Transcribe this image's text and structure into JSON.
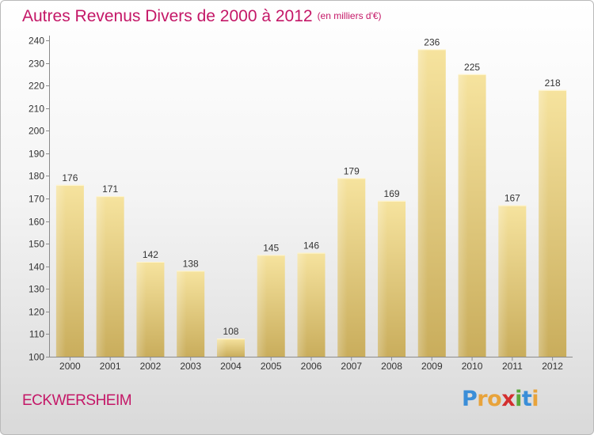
{
  "title": "Autres Revenus Divers de 2000 à 2012",
  "subtitle": "(en milliers d'€)",
  "location": "ECKWERSHEIM",
  "logo": {
    "letters": [
      "P",
      "r",
      "o",
      "x",
      "i",
      "t",
      "i"
    ],
    "colors": [
      "#3a8ed8",
      "#e8a33b",
      "#e8a33b",
      "#d32f2f",
      "#5aa83a",
      "#3a8ed8",
      "#e8a33b"
    ]
  },
  "colors": {
    "bar_light": "#f6e39e",
    "bar_dark": "#c9ad5c",
    "title": "#c41767"
  },
  "chart_data": {
    "type": "bar",
    "title": "Autres Revenus Divers de 2000 à 2012",
    "subtitle": "(en milliers d'€)",
    "categories": [
      "2000",
      "2001",
      "2002",
      "2003",
      "2004",
      "2005",
      "2006",
      "2007",
      "2008",
      "2009",
      "2010",
      "2011",
      "2012"
    ],
    "values": [
      176,
      171,
      142,
      138,
      108,
      145,
      146,
      179,
      169,
      236,
      225,
      167,
      218
    ],
    "ylim": [
      100,
      240
    ],
    "yticks": [
      100,
      110,
      120,
      130,
      140,
      150,
      160,
      170,
      180,
      190,
      200,
      210,
      220,
      230,
      240
    ],
    "grid": false,
    "data_labels": true
  }
}
